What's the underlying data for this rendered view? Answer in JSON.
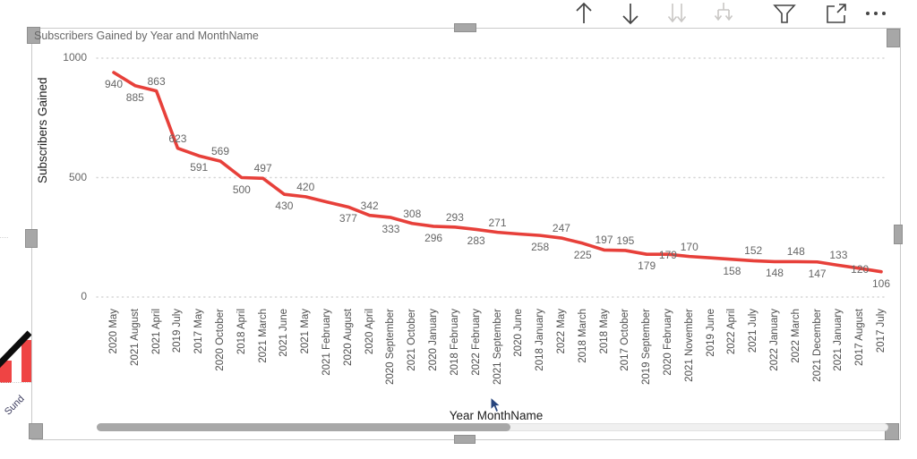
{
  "visual": {
    "title": "Subscribers Gained by Year and MonthName",
    "x_axis_title": "Year MonthName",
    "y_axis_title": "Subscribers Gained"
  },
  "toolbar": {
    "buttons": [
      {
        "name": "drill-up",
        "enabled": true
      },
      {
        "name": "drill-down",
        "enabled": true
      },
      {
        "name": "drill-to-next-level",
        "enabled": false
      },
      {
        "name": "expand-all",
        "enabled": false
      },
      {
        "name": "filter",
        "enabled": true
      },
      {
        "name": "focus-mode",
        "enabled": true
      },
      {
        "name": "more-options",
        "enabled": true
      }
    ]
  },
  "chart_data": {
    "type": "line",
    "title": "Subscribers Gained by Year and MonthName",
    "xlabel": "Year MonthName",
    "ylabel": "Subscribers Gained",
    "ylim": [
      0,
      1000
    ],
    "yticks": [
      0,
      500,
      1000
    ],
    "grid": "dotted-horizontal",
    "legend": "none",
    "line_color": "#e7403a",
    "label_color": "#666666",
    "categories": [
      "2020 May",
      "2021 August",
      "2021 April",
      "2019 July",
      "2017 May",
      "2020 October",
      "2018 April",
      "2021 March",
      "2021 June",
      "2021 May",
      "2021 February",
      "2020 August",
      "2020 April",
      "2020 September",
      "2021 October",
      "2020 January",
      "2018 February",
      "2022 February",
      "2021 September",
      "2020 June",
      "2018 January",
      "2022 May",
      "2018 March",
      "2018 May",
      "2017 October",
      "2019 September",
      "2020 February",
      "2021 November",
      "2019 June",
      "2022 April",
      "2021 July",
      "2022 January",
      "2022 March",
      "2021 December",
      "2021 January",
      "2017 August",
      "2017 July"
    ],
    "values": [
      940,
      885,
      863,
      623,
      591,
      569,
      500,
      497,
      430,
      420,
      398,
      377,
      342,
      333,
      308,
      296,
      293,
      283,
      271,
      264,
      258,
      247,
      225,
      197,
      195,
      179,
      179,
      170,
      164,
      158,
      152,
      148,
      148,
      147,
      133,
      120,
      106
    ],
    "label_pos": [
      "below",
      "below",
      "above",
      "above",
      "below",
      "above",
      "below",
      "above",
      "below",
      "above",
      "hidden",
      "below",
      "above",
      "below",
      "above",
      "below",
      "above",
      "below",
      "above",
      "hidden",
      "below",
      "above",
      "below",
      "above",
      "above",
      "below",
      "mid",
      "above",
      "hidden",
      "below",
      "above",
      "below",
      "above",
      "below",
      "above",
      "mid",
      "below"
    ]
  },
  "scrollbar": {
    "orientation": "horizontal"
  },
  "adjacent_visual": {
    "axis_label_fragment": "Sund"
  }
}
